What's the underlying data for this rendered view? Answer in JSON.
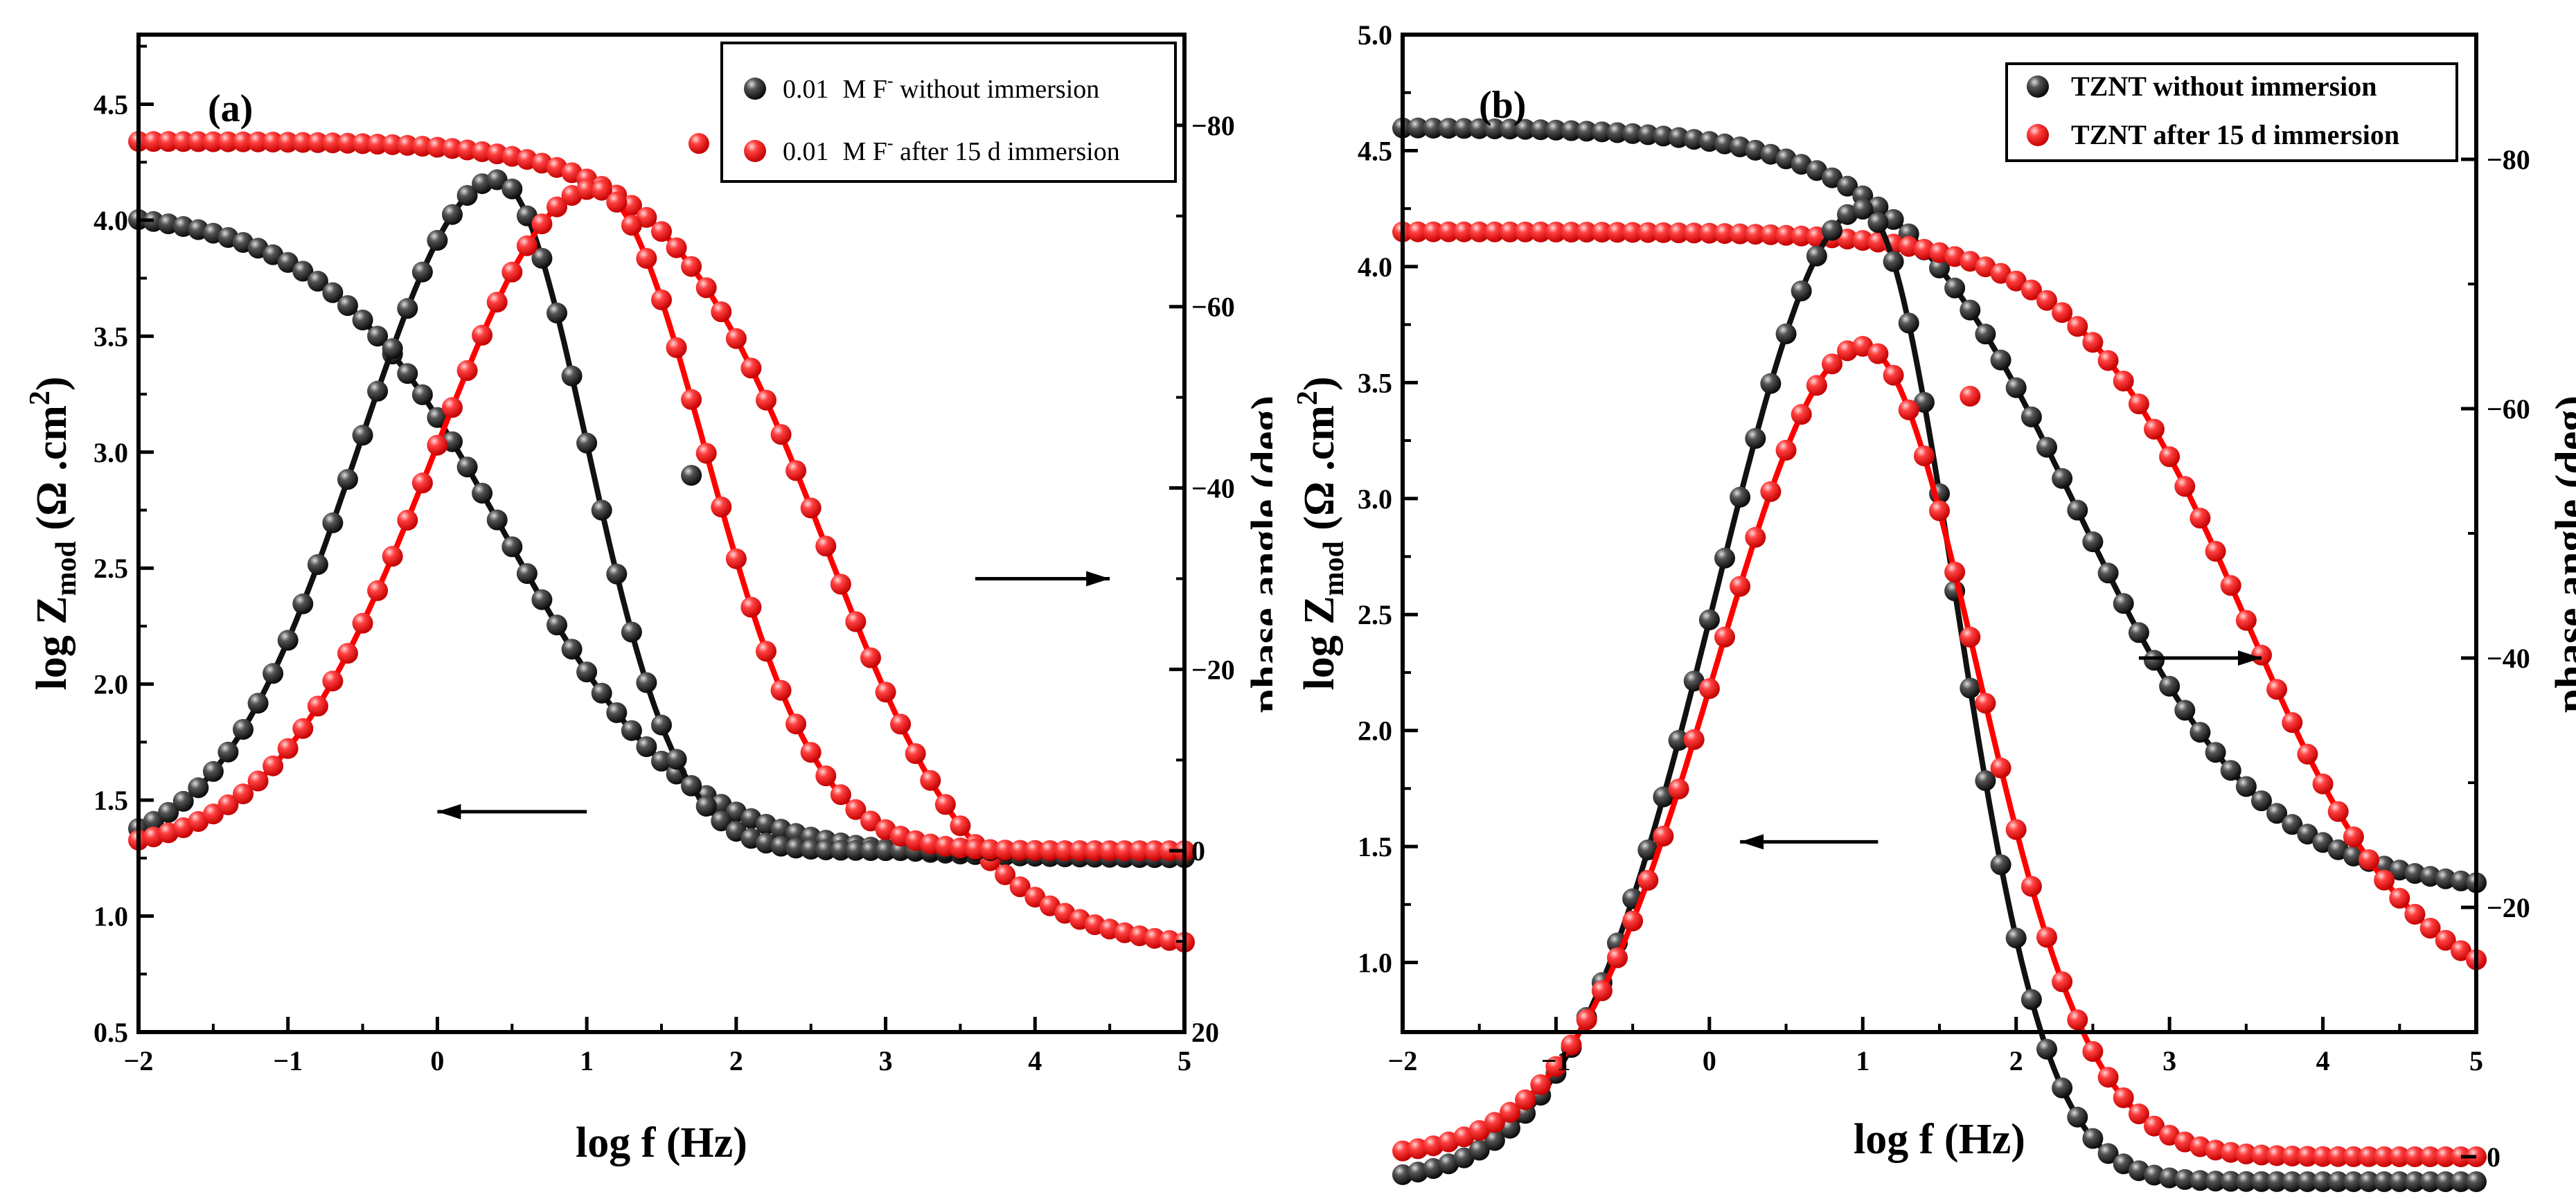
{
  "colors": {
    "black_series": "#1a1a1a",
    "red_series": "#ff1a1a",
    "black_fit": "#111111",
    "red_fit": "#ff0000"
  },
  "chart_data": [
    {
      "type": "line",
      "panel_label": "(a)",
      "xlabel": "log f (Hz)",
      "ylabel_main": "log Z",
      "ylabel_sub": "mod",
      "ylabel_tail_open": " (Ω .cm",
      "ylabel_sup": "2",
      "ylabel_tail_close": ")",
      "right_axis_label_clipped": "phase angle (deg)",
      "xlim": [
        -2,
        5
      ],
      "xticks": [
        "-2",
        "-1",
        "0",
        "1",
        "2",
        "3",
        "4",
        "5"
      ],
      "ylim_left": [
        0.5,
        4.8
      ],
      "yticks_left": [
        "0.5",
        "1.0",
        "1.5",
        "2.0",
        "2.5",
        "3.0",
        "3.5",
        "4.0",
        "4.5"
      ],
      "ylim_right": [
        20,
        -90
      ],
      "yticks_right": [
        "20",
        "0",
        "-20",
        "-40",
        "-60",
        "-80"
      ],
      "legend": [
        {
          "conc": "0.01",
          "species": "M F",
          "sup": "-",
          "text": " without immersion",
          "color": "black"
        },
        {
          "conc": "0.01",
          "species": "M F",
          "sup": "-",
          "text": " after 15 d immersion",
          "color": "red"
        }
      ],
      "annotations": [
        {
          "direction": "left",
          "axis": "left",
          "x1": 1.0,
          "x2": 0.0,
          "y": 1.45
        },
        {
          "direction": "right",
          "axis": "right",
          "x1": 3.6,
          "x2": 4.5,
          "y": -30
        }
      ],
      "series": [
        {
          "name": "0.01 M F- without immersion |Z|",
          "color": "black",
          "axis": "left",
          "params": {
            "Rs": 1.25,
            "Rp": 4.05,
            "fc": 0.45,
            "a": 0.72
          }
        },
        {
          "name": "0.01 M F- after 15 d immersion |Z|",
          "color": "red",
          "axis": "left",
          "params": {
            "Rs": 0.85,
            "Rp": 4.34,
            "fc": 2.6,
            "a": 0.82
          }
        },
        {
          "name": "0.01 M F- without immersion phase",
          "color": "black",
          "axis": "right",
          "params": {
            "peak": -74,
            "center": 0.4,
            "wl": 1.3,
            "wr": 0.85,
            "base": 0
          }
        },
        {
          "name": "0.01 M F- after 15 d immersion phase",
          "color": "red",
          "axis": "right",
          "params": {
            "peak": -73,
            "center": 1.05,
            "wl": 1.5,
            "wr": 1.05,
            "base": 0
          }
        }
      ],
      "outliers": [
        {
          "x": 1.7,
          "y": 2.9,
          "color": "black",
          "axis": "left"
        },
        {
          "x": 1.75,
          "y": -78,
          "color": "red",
          "axis": "right"
        }
      ]
    },
    {
      "type": "line",
      "panel_label": "(b)",
      "xlabel": "log f (Hz)",
      "ylabel_main": "log Z",
      "ylabel_sub": "mod",
      "ylabel_tail_open": " (Ω .cm",
      "ylabel_sup": "2",
      "ylabel_tail_close": ")",
      "right_axis_label_clipped": "phase angle (deg)",
      "xlim": [
        -2,
        5
      ],
      "xticks": [
        "-2",
        "-1",
        "0",
        "1",
        "2",
        "3",
        "4",
        "5"
      ],
      "ylim_left": [
        0.7,
        5.0
      ],
      "yticks_left": [
        "1.0",
        "1.5",
        "2.0",
        "2.5",
        "3.0",
        "3.5",
        "4.0",
        "4.5",
        "5.0"
      ],
      "ylim_right": [
        -10,
        -90
      ],
      "yticks_right": [
        "0",
        "-20",
        "-40",
        "-60",
        "-80"
      ],
      "legend": [
        {
          "text": "TZNT without immersion",
          "color": "black"
        },
        {
          "text": "TZNT after 15 d immersion",
          "color": "red"
        }
      ],
      "annotations": [
        {
          "direction": "left",
          "axis": "left",
          "x1": 1.1,
          "x2": 0.2,
          "y": 1.52
        },
        {
          "direction": "right",
          "axis": "right",
          "x1": 2.8,
          "x2": 3.6,
          "y": -40
        }
      ],
      "series": [
        {
          "name": "TZNT without immersion |Z|",
          "color": "black",
          "axis": "left",
          "params": {
            "Rs": 1.3,
            "Rp": 4.6,
            "fc": 2.4,
            "a": 0.72
          }
        },
        {
          "name": "TZNT after 15 d immersion |Z|",
          "color": "red",
          "axis": "left",
          "params": {
            "Rs": 0.8,
            "Rp": 4.15,
            "fc": 3.5,
            "a": 0.78
          }
        },
        {
          "name": "TZNT without immersion phase",
          "color": "black",
          "axis": "right",
          "params": {
            "peak": -76,
            "center": 1.0,
            "wl": 1.35,
            "wr": 0.85,
            "base": 2
          }
        },
        {
          "name": "TZNT after 15 d immersion phase",
          "color": "red",
          "axis": "right",
          "params": {
            "peak": -65,
            "center": 1.0,
            "wl": 1.35,
            "wr": 1.05,
            "base": 0
          }
        }
      ],
      "outliers": [
        {
          "x": 1.7,
          "y": -61,
          "color": "red",
          "axis": "right"
        }
      ]
    }
  ]
}
